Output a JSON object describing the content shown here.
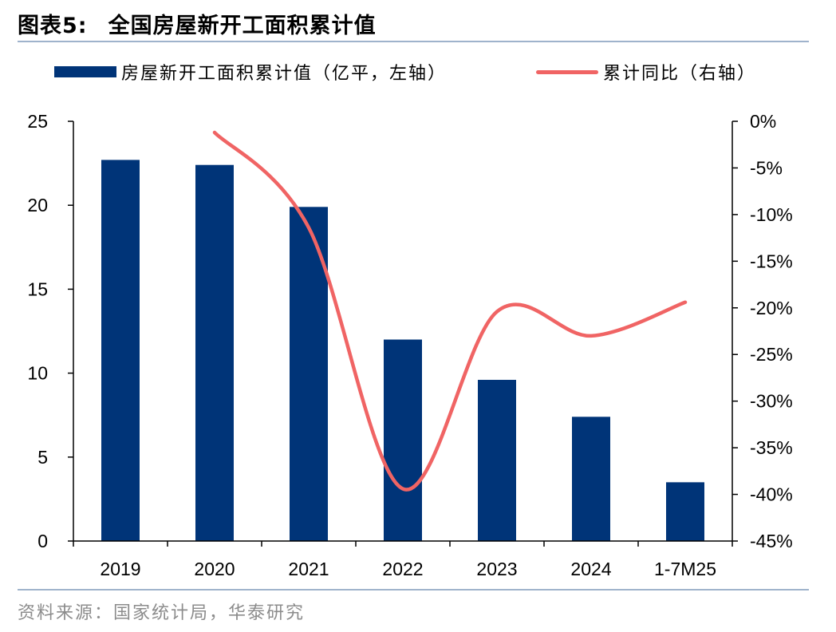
{
  "title": {
    "figure": "图表5:",
    "text": "全国房屋新开工面积累计值"
  },
  "legend": {
    "bar_label": "房屋新开工面积累计值（亿平，左轴）",
    "line_label": "累计同比（右轴）"
  },
  "source": "资料来源：国家统计局，华泰研究",
  "colors": {
    "bar": "#003478",
    "line": "#f06464",
    "rule": "#9fb3cc"
  },
  "chart_data": {
    "type": "bar",
    "categories": [
      "2019",
      "2020",
      "2021",
      "2022",
      "2023",
      "2024",
      "1-7M25"
    ],
    "series": [
      {
        "name": "房屋新开工面积累计值（亿平，左轴）",
        "type": "bar",
        "axis": "left",
        "values": [
          22.7,
          22.4,
          19.9,
          12.0,
          9.6,
          7.4,
          3.5
        ]
      },
      {
        "name": "累计同比（右轴）",
        "type": "line",
        "axis": "right",
        "smooth": true,
        "values": [
          null,
          -1.2,
          -11.4,
          -39.4,
          -20.4,
          -23.0,
          -19.4
        ]
      }
    ],
    "y_left": {
      "min": 0,
      "max": 25,
      "ticks": [
        "0",
        "5",
        "10",
        "15",
        "20",
        "25"
      ]
    },
    "y_right": {
      "min": -45,
      "max": 0,
      "ticks": [
        "-45%",
        "-40%",
        "-35%",
        "-30%",
        "-25%",
        "-20%",
        "-15%",
        "-10%",
        "-5%",
        "0%"
      ]
    },
    "grid": false,
    "legend_position": "top"
  }
}
